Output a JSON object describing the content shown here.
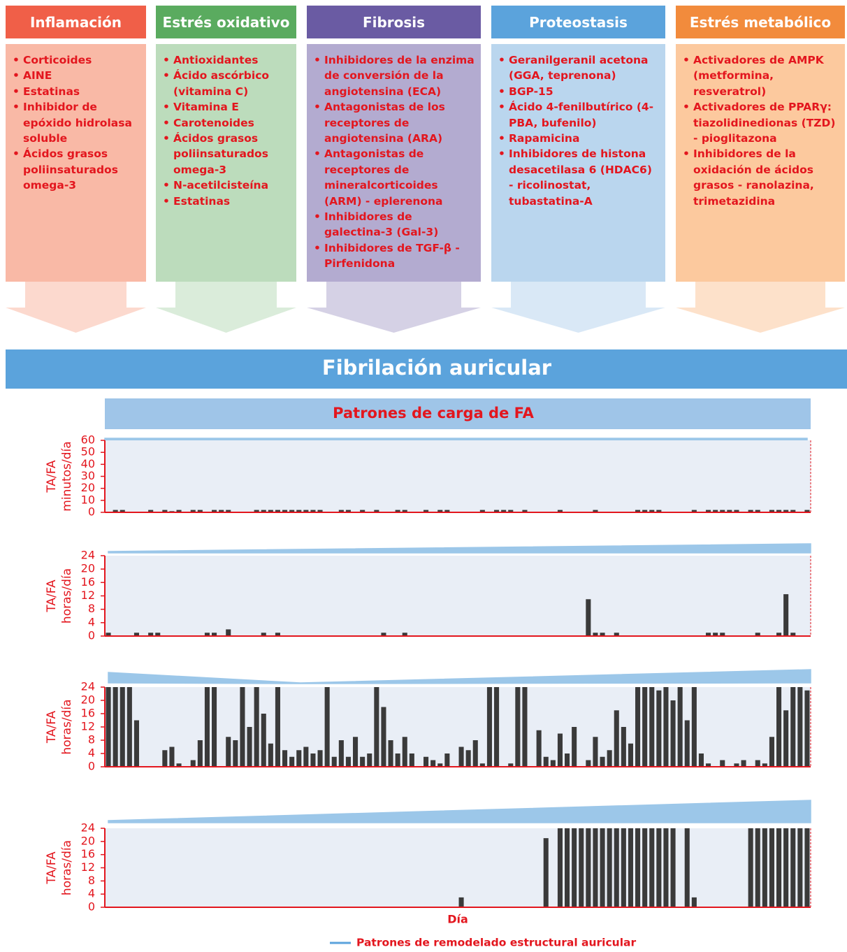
{
  "columns": [
    {
      "title": "Inflamación",
      "header_color": "#f05f48",
      "body_color": "#f9b9a6",
      "items": [
        "Corticoides",
        "AINE",
        "Estatinas",
        "Inhibidor de epóxido hidrolasa soluble",
        "Ácidos grasos poliinsaturados omega-3"
      ]
    },
    {
      "title": "Estrés oxidativo",
      "header_color": "#5aab5f",
      "body_color": "#bcdcbc",
      "items": [
        "Antioxidantes",
        "Ácido ascórbico (vitamina C)",
        "Vitamina E",
        "Carotenoides",
        "Ácidos grasos poliinsaturados omega-3",
        "N-acetilcisteína",
        "Estatinas"
      ]
    },
    {
      "title": "Fibrosis",
      "header_color": "#6a5ba3",
      "body_color": "#b3abd0",
      "items": [
        "Inhibidores de la enzima de conversión de la angiotensina (ECA)",
        "Antagonistas de los receptores de angiotensina (ARA)",
        "Antagonistas de receptores de mineralcorticoides (ARM) - eplerenona",
        "Inhibidores de galectina-3 (Gal-3)",
        "Inhibidores de TGF-β - Pirfenidona"
      ]
    },
    {
      "title": "Proteostasis",
      "header_color": "#5ba3dc",
      "body_color": "#bad6ee",
      "items": [
        "Geranilgeranil acetona (GGA, teprenona)",
        "BGP-15",
        "Ácido 4-fenilbutírico (4-PBA, bufenilo)",
        "Rapamicina",
        "Inhibidores de histona desacetilasa 6 (HDAC6) - ricolinostat, tubastatina-A"
      ]
    },
    {
      "title": "Estrés metabólico",
      "header_color": "#f28b3c",
      "body_color": "#fcc99e",
      "items": [
        "Activadores de AMPK (metformina, resveratrol)",
        "Activadores de PPARγ: tiazolidinedionas (TZD) - pioglitazona",
        "Inhibidores de la oxidación de ácidos grasos - ranolazina, trimetazidina"
      ]
    }
  ],
  "banner": "Fibrilación auricular",
  "section_title": "Patrones de carga de FA",
  "legend": {
    "label": "Patrones de remodelado estructural auricular",
    "color": "#5ba3dc"
  },
  "chart_data": [
    {
      "type": "bar",
      "y_label": "TA/FA",
      "y_unit": "minutos/día",
      "color": "#3a3a3a",
      "ylim": [
        0,
        60
      ],
      "yticks": [
        0,
        10,
        20,
        30,
        40,
        50,
        60
      ],
      "values": [
        0,
        2,
        2,
        0,
        0,
        0,
        2,
        0,
        2,
        1,
        2,
        0,
        2,
        2,
        0,
        2,
        2,
        2,
        0,
        0,
        0,
        2,
        2,
        2,
        2,
        2,
        2,
        2,
        2,
        2,
        2,
        0,
        0,
        2,
        2,
        0,
        2,
        0,
        2,
        0,
        0,
        2,
        2,
        0,
        0,
        2,
        0,
        2,
        2,
        0,
        0,
        0,
        0,
        2,
        0,
        2,
        2,
        2,
        0,
        2,
        0,
        0,
        0,
        0,
        2,
        0,
        0,
        0,
        0,
        2,
        0,
        0,
        0,
        0,
        0,
        2,
        2,
        2,
        2,
        0,
        0,
        0,
        0,
        2,
        0,
        2,
        2,
        2,
        2,
        2,
        0,
        2,
        2,
        0,
        2,
        2,
        2,
        2,
        0,
        2
      ]
    },
    {
      "type": "bar",
      "y_label": "TA/FA",
      "y_unit": "horas/día",
      "color": "#3a3a3a",
      "ylim": [
        0,
        24
      ],
      "yticks": [
        0,
        4,
        8,
        12,
        16,
        20,
        24
      ],
      "values": [
        1,
        0,
        0,
        0,
        1,
        0,
        1,
        1,
        0,
        0,
        0,
        0,
        0,
        0,
        1,
        1,
        0,
        2,
        0,
        0,
        0,
        0,
        1,
        0,
        1,
        0,
        0,
        0,
        0,
        0,
        0,
        0,
        0,
        0,
        0,
        0,
        0,
        0,
        0,
        1,
        0,
        0,
        1,
        0,
        0,
        0,
        0,
        0,
        0,
        0,
        0,
        0,
        0,
        0,
        0,
        0,
        0,
        0,
        0,
        0,
        0,
        0,
        0,
        0,
        0,
        0,
        0,
        0,
        11,
        1,
        1,
        0,
        1,
        0,
        0,
        0,
        0,
        0,
        0,
        0,
        0,
        0,
        0,
        0,
        0,
        1,
        1,
        1,
        0,
        0,
        0,
        0,
        1,
        0,
        0,
        1,
        12.5,
        1,
        0,
        0
      ]
    },
    {
      "type": "bar",
      "y_label": "TA/FA",
      "y_unit": "horas/día",
      "color": "#3a3a3a",
      "ylim": [
        0,
        24
      ],
      "yticks": [
        0,
        4,
        8,
        12,
        16,
        20,
        24
      ],
      "values": [
        24,
        24,
        24,
        24,
        14,
        0,
        0,
        0,
        5,
        6,
        1,
        0,
        2,
        8,
        24,
        24,
        0,
        9,
        8,
        24,
        12,
        24,
        16,
        7,
        24,
        5,
        3,
        5,
        6,
        4,
        5,
        24,
        3,
        8,
        3,
        9,
        3,
        4,
        24,
        18,
        8,
        4,
        9,
        4,
        0,
        3,
        2,
        1,
        4,
        0,
        6,
        5,
        8,
        1,
        24,
        24,
        0,
        1,
        24,
        24,
        0,
        11,
        3,
        2,
        10,
        4,
        12,
        0,
        2,
        9,
        3,
        5,
        17,
        12,
        7,
        24,
        24,
        24,
        23,
        24,
        20,
        24,
        14,
        24,
        4,
        1,
        0,
        2,
        0,
        1,
        2,
        0,
        2,
        1,
        9,
        24,
        17,
        24,
        24,
        23
      ]
    },
    {
      "type": "bar",
      "y_label": "TA/FA",
      "y_unit": "horas/día",
      "x_label": "Día",
      "color": "#3a3a3a",
      "ylim": [
        0,
        24
      ],
      "yticks": [
        0,
        4,
        8,
        12,
        16,
        20,
        24
      ],
      "values": [
        0,
        0,
        0,
        0,
        0,
        0,
        0,
        0,
        0,
        0,
        0,
        0,
        0,
        0,
        0,
        0,
        0,
        0,
        0,
        0,
        0,
        0,
        0,
        0,
        0,
        0,
        0,
        0,
        0,
        0,
        0,
        0,
        0,
        0,
        0,
        0,
        0,
        0,
        0,
        0,
        0,
        0,
        0,
        0,
        0,
        0,
        0,
        0,
        0,
        0,
        3,
        0,
        0,
        0,
        0,
        0,
        0,
        0,
        0,
        0,
        0,
        0,
        21,
        0,
        24,
        24,
        24,
        24,
        24,
        24,
        24,
        24,
        24,
        24,
        24,
        24,
        24,
        24,
        24,
        24,
        24,
        0,
        24,
        3,
        0,
        0,
        0,
        0,
        0,
        0,
        0,
        24,
        24,
        24,
        24,
        24,
        24,
        24,
        24,
        24
      ]
    }
  ]
}
